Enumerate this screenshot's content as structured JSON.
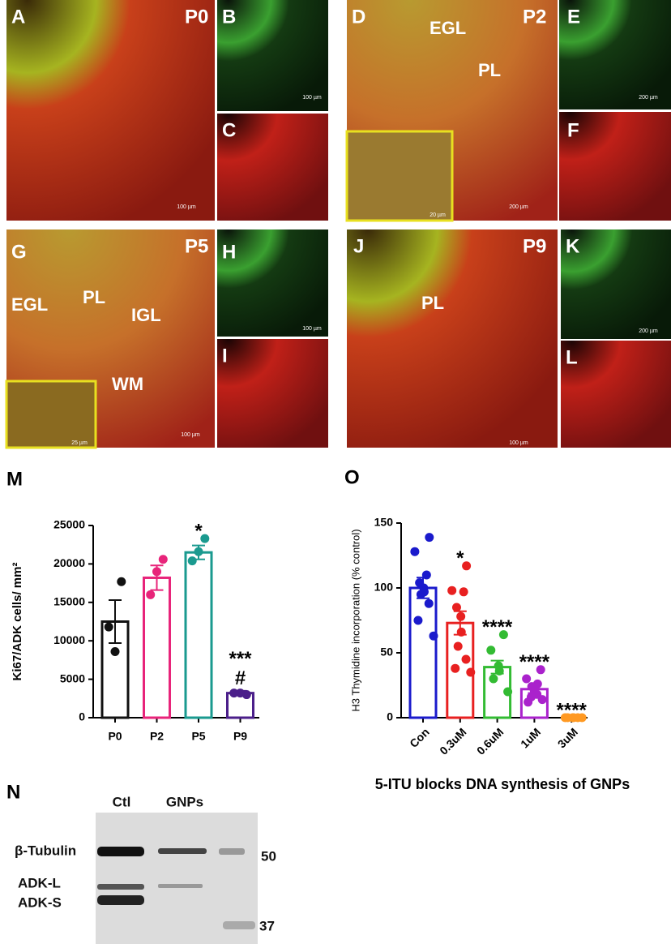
{
  "panels": [
    {
      "letter": "A",
      "stage": "P0",
      "scale_bar": "100 µm"
    },
    {
      "letter": "B",
      "scale_bar": "100 µm"
    },
    {
      "letter": "C"
    },
    {
      "letter": "D",
      "stage": "P2",
      "regions": [
        "EGL",
        "PL"
      ],
      "scale_bar": "200 µm",
      "inset_scale_bar": "20 µm"
    },
    {
      "letter": "E",
      "scale_bar": "200 µm"
    },
    {
      "letter": "F"
    },
    {
      "letter": "G",
      "stage": "P5",
      "regions": [
        "EGL",
        "PL",
        "IGL",
        "WM"
      ],
      "scale_bar": "100 µm",
      "inset_scale_bar": "25 µm"
    },
    {
      "letter": "H",
      "scale_bar": "100 µm"
    },
    {
      "letter": "I"
    },
    {
      "letter": "J",
      "stage": "P9",
      "regions": [
        "PL"
      ],
      "scale_bar": "100 µm"
    },
    {
      "letter": "K",
      "scale_bar": "200 µm"
    },
    {
      "letter": "L"
    }
  ],
  "chart_data": [
    {
      "type": "bar",
      "panel_label": "M",
      "ylabel": "Ki67/ADK cells/ mm²",
      "categories": [
        "P0",
        "P2",
        "P5",
        "P9"
      ],
      "values": [
        12500,
        18200,
        21500,
        3200
      ],
      "errors": [
        2800,
        1600,
        900,
        300
      ],
      "points": [
        [
          17700,
          8600,
          11800
        ],
        [
          20600,
          19000,
          16000
        ],
        [
          23300,
          21600,
          20400
        ],
        [
          3000,
          3200,
          3200
        ]
      ],
      "colors": [
        "#111111",
        "#e8247a",
        "#1a9a8f",
        "#4b1f8a"
      ],
      "annotations": [
        null,
        null,
        [
          "*"
        ],
        [
          "***",
          "#"
        ]
      ],
      "ylim": [
        0,
        25000
      ],
      "yticks": [
        0,
        5000,
        10000,
        15000,
        20000,
        25000
      ]
    },
    {
      "type": "bar",
      "panel_label": "O",
      "ylabel": "H3 Thymidine incorporation  (% control)",
      "xlabel": "5-ITU blocks DNA synthesis of GNPs",
      "categories": [
        "Con",
        "0.3uM",
        "0.6uM",
        "1uM",
        "3uM"
      ],
      "values": [
        100,
        73,
        39,
        22,
        0
      ],
      "errors": [
        8,
        9,
        5,
        3,
        0
      ],
      "points": [
        [
          139,
          128,
          110,
          104,
          100,
          97,
          95,
          88,
          75,
          63
        ],
        [
          117,
          98,
          97,
          85,
          78,
          66,
          55,
          45,
          38,
          35
        ],
        [
          64,
          52,
          40,
          36,
          30,
          20
        ],
        [
          37,
          30,
          26,
          24,
          20,
          18,
          16,
          14,
          12
        ],
        [
          0,
          0,
          0,
          0,
          0,
          0
        ]
      ],
      "colors": [
        "#1a1acc",
        "#e82020",
        "#33bb33",
        "#aa22cc",
        "#ff9922"
      ],
      "annotations": [
        null,
        [
          "*"
        ],
        [
          "****"
        ],
        [
          "****"
        ],
        [
          "****"
        ]
      ],
      "ylim": [
        0,
        150
      ],
      "yticks": [
        0,
        50,
        100,
        150
      ]
    }
  ],
  "blot": {
    "letter": "N",
    "lanes": [
      "Ctl",
      "GNPs"
    ],
    "bands": [
      "β-Tubulin",
      "ADK-L",
      "ADK-S"
    ],
    "markers": [
      50,
      37
    ]
  }
}
